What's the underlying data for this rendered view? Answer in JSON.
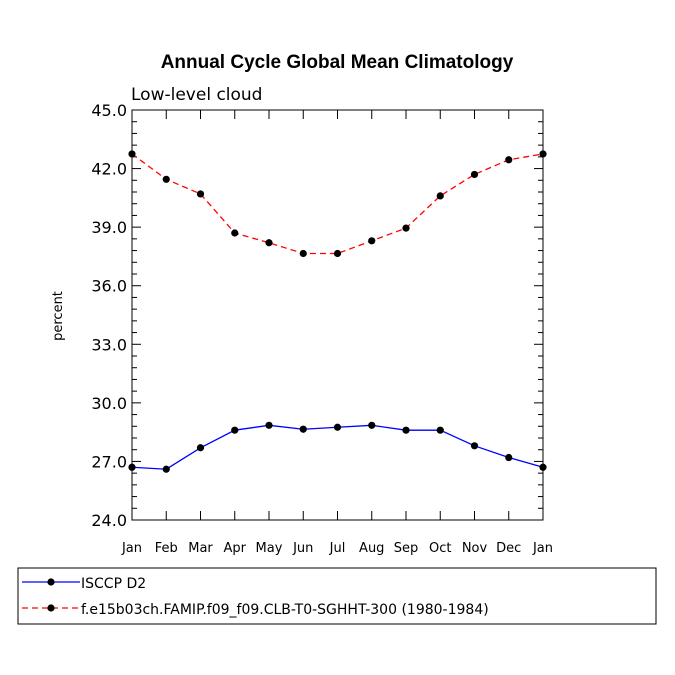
{
  "chart_data": {
    "type": "line",
    "title": "Annual Cycle Global Mean Climatology",
    "subtitle": "Low-level cloud",
    "xlabel": "",
    "ylabel": "percent",
    "categories": [
      "Jan",
      "Feb",
      "Mar",
      "Apr",
      "May",
      "Jun",
      "Jul",
      "Aug",
      "Sep",
      "Oct",
      "Nov",
      "Dec",
      "Jan"
    ],
    "ylim": [
      24.0,
      45.0
    ],
    "yticks": [
      "24.0",
      "27.0",
      "30.0",
      "33.0",
      "36.0",
      "39.0",
      "42.0",
      "45.0"
    ],
    "yticks_values": [
      24,
      27,
      30,
      33,
      36,
      39,
      42,
      45
    ],
    "series": [
      {
        "name": "ISCCP D2",
        "color": "#0000ff",
        "dash": "solid",
        "values": [
          26.7,
          26.6,
          27.7,
          28.6,
          28.85,
          28.65,
          28.75,
          28.85,
          28.6,
          28.6,
          27.8,
          27.2,
          26.7
        ]
      },
      {
        "name": "f.e15b03ch.FAMIP.f09_f09.CLB-T0-SGHHT-300 (1980-1984)",
        "color": "#ff0000",
        "dash": "dashed",
        "values": [
          42.75,
          41.45,
          40.7,
          38.7,
          38.2,
          37.65,
          37.65,
          38.3,
          38.95,
          40.6,
          41.7,
          42.45,
          42.75
        ]
      }
    ],
    "legend_position": "bottom"
  }
}
